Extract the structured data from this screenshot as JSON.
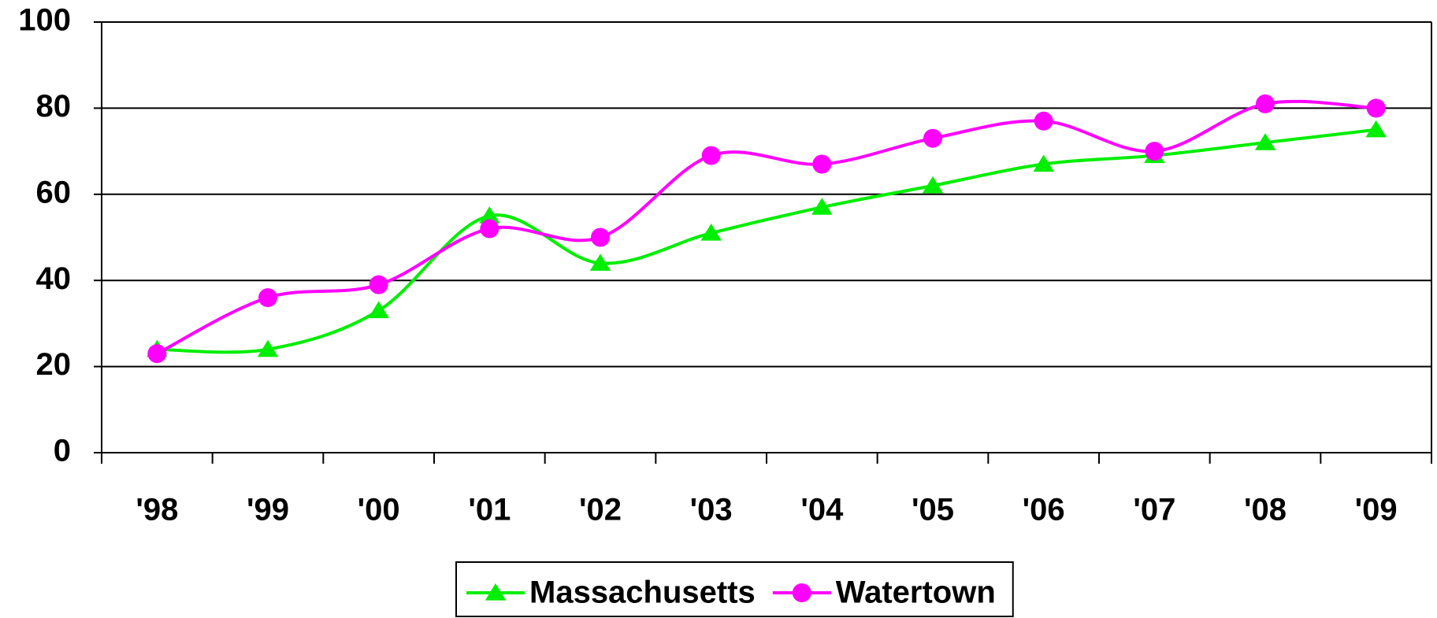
{
  "chart_data": {
    "type": "line",
    "categories": [
      "'98",
      "'99",
      "'00",
      "'01",
      "'02",
      "'03",
      "'04",
      "'05",
      "'06",
      "'07",
      "'08",
      "'09"
    ],
    "series": [
      {
        "name": "Massachusetts",
        "color": "#00ee00",
        "marker": "triangle",
        "values": [
          24,
          24,
          33,
          55,
          44,
          51,
          57,
          62,
          67,
          69,
          72,
          75
        ]
      },
      {
        "name": "Watertown",
        "color": "#ff00ff",
        "marker": "circle",
        "values": [
          23,
          36,
          39,
          52,
          50,
          69,
          67,
          73,
          77,
          70,
          81,
          80
        ]
      }
    ],
    "ylim": [
      0,
      100
    ],
    "yticks": [
      0,
      20,
      40,
      60,
      80,
      100
    ],
    "grid": true,
    "smooth": true,
    "legend": "bottom"
  }
}
